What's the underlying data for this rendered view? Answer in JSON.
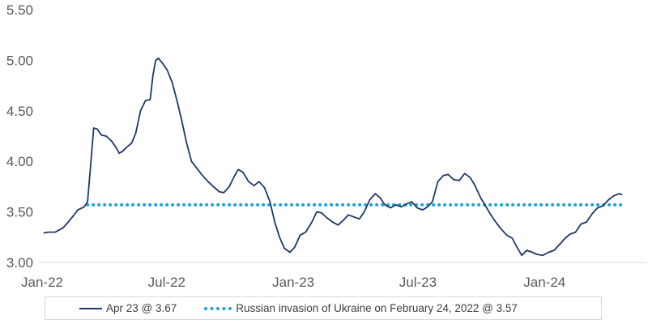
{
  "chart_data": {
    "type": "line",
    "ylim": [
      3.0,
      5.5
    ],
    "y_ticks": [
      "3.00",
      "3.50",
      "4.00",
      "4.50",
      "5.00",
      "5.50"
    ],
    "x_ticks": [
      {
        "label": "Jan-22",
        "date": "2022-01-01"
      },
      {
        "label": "Jul-22",
        "date": "2022-07-01"
      },
      {
        "label": "Jan-23",
        "date": "2023-01-01"
      },
      {
        "label": "Jul-23",
        "date": "2023-07-01"
      },
      {
        "label": "Jan-24",
        "date": "2024-01-01"
      }
    ],
    "grid": false,
    "legend_position": "bottom",
    "series": [
      {
        "name": "Apr 23 @ 3.67",
        "color": "#1f3864",
        "style": "solid",
        "points": [
          [
            "2022-01-03",
            3.29
          ],
          [
            "2022-01-10",
            3.3
          ],
          [
            "2022-01-20",
            3.3
          ],
          [
            "2022-01-31",
            3.34
          ],
          [
            "2022-02-08",
            3.4
          ],
          [
            "2022-02-14",
            3.45
          ],
          [
            "2022-02-22",
            3.52
          ],
          [
            "2022-03-03",
            3.55
          ],
          [
            "2022-03-08",
            3.6
          ],
          [
            "2022-03-13",
            4.0
          ],
          [
            "2022-03-17",
            4.33
          ],
          [
            "2022-03-22",
            4.32
          ],
          [
            "2022-03-28",
            4.26
          ],
          [
            "2022-04-04",
            4.25
          ],
          [
            "2022-04-12",
            4.2
          ],
          [
            "2022-04-19",
            4.13
          ],
          [
            "2022-04-23",
            4.08
          ],
          [
            "2022-04-28",
            4.1
          ],
          [
            "2022-05-04",
            4.14
          ],
          [
            "2022-05-11",
            4.18
          ],
          [
            "2022-05-17",
            4.28
          ],
          [
            "2022-05-24",
            4.5
          ],
          [
            "2022-05-31",
            4.6
          ],
          [
            "2022-06-07",
            4.61
          ],
          [
            "2022-06-11",
            4.85
          ],
          [
            "2022-06-15",
            5.0
          ],
          [
            "2022-06-19",
            5.02
          ],
          [
            "2022-06-25",
            4.97
          ],
          [
            "2022-07-02",
            4.9
          ],
          [
            "2022-07-09",
            4.78
          ],
          [
            "2022-07-16",
            4.6
          ],
          [
            "2022-07-23",
            4.4
          ],
          [
            "2022-07-30",
            4.18
          ],
          [
            "2022-08-06",
            4.0
          ],
          [
            "2022-08-14",
            3.93
          ],
          [
            "2022-08-22",
            3.86
          ],
          [
            "2022-08-30",
            3.8
          ],
          [
            "2022-09-07",
            3.75
          ],
          [
            "2022-09-15",
            3.7
          ],
          [
            "2022-09-22",
            3.69
          ],
          [
            "2022-09-30",
            3.75
          ],
          [
            "2022-10-07",
            3.85
          ],
          [
            "2022-10-13",
            3.92
          ],
          [
            "2022-10-20",
            3.89
          ],
          [
            "2022-10-28",
            3.8
          ],
          [
            "2022-11-05",
            3.76
          ],
          [
            "2022-11-12",
            3.8
          ],
          [
            "2022-11-20",
            3.74
          ],
          [
            "2022-11-28",
            3.6
          ],
          [
            "2022-12-05",
            3.4
          ],
          [
            "2022-12-12",
            3.25
          ],
          [
            "2022-12-19",
            3.14
          ],
          [
            "2022-12-27",
            3.1
          ],
          [
            "2023-01-03",
            3.15
          ],
          [
            "2023-01-11",
            3.27
          ],
          [
            "2023-01-19",
            3.3
          ],
          [
            "2023-01-28",
            3.4
          ],
          [
            "2023-02-04",
            3.5
          ],
          [
            "2023-02-11",
            3.49
          ],
          [
            "2023-02-19",
            3.44
          ],
          [
            "2023-02-27",
            3.4
          ],
          [
            "2023-03-07",
            3.37
          ],
          [
            "2023-03-15",
            3.42
          ],
          [
            "2023-03-22",
            3.47
          ],
          [
            "2023-03-30",
            3.45
          ],
          [
            "2023-04-07",
            3.43
          ],
          [
            "2023-04-14",
            3.5
          ],
          [
            "2023-04-22",
            3.62
          ],
          [
            "2023-04-30",
            3.68
          ],
          [
            "2023-05-07",
            3.64
          ],
          [
            "2023-05-14",
            3.57
          ],
          [
            "2023-05-22",
            3.54
          ],
          [
            "2023-05-30",
            3.57
          ],
          [
            "2023-06-07",
            3.55
          ],
          [
            "2023-06-15",
            3.58
          ],
          [
            "2023-06-22",
            3.6
          ],
          [
            "2023-06-30",
            3.54
          ],
          [
            "2023-07-08",
            3.52
          ],
          [
            "2023-07-15",
            3.55
          ],
          [
            "2023-07-22",
            3.6
          ],
          [
            "2023-07-30",
            3.8
          ],
          [
            "2023-08-07",
            3.86
          ],
          [
            "2023-08-14",
            3.87
          ],
          [
            "2023-08-22",
            3.82
          ],
          [
            "2023-08-30",
            3.81
          ],
          [
            "2023-09-07",
            3.88
          ],
          [
            "2023-09-15",
            3.84
          ],
          [
            "2023-09-22",
            3.76
          ],
          [
            "2023-09-30",
            3.64
          ],
          [
            "2023-10-08",
            3.55
          ],
          [
            "2023-10-15",
            3.47
          ],
          [
            "2023-10-22",
            3.4
          ],
          [
            "2023-10-30",
            3.33
          ],
          [
            "2023-11-07",
            3.27
          ],
          [
            "2023-11-15",
            3.24
          ],
          [
            "2023-11-22",
            3.15
          ],
          [
            "2023-11-29",
            3.07
          ],
          [
            "2023-12-06",
            3.12
          ],
          [
            "2023-12-14",
            3.1
          ],
          [
            "2023-12-21",
            3.08
          ],
          [
            "2023-12-29",
            3.07
          ],
          [
            "2024-01-07",
            3.1
          ],
          [
            "2024-01-15",
            3.12
          ],
          [
            "2024-01-23",
            3.18
          ],
          [
            "2024-01-31",
            3.24
          ],
          [
            "2024-02-07",
            3.28
          ],
          [
            "2024-02-15",
            3.3
          ],
          [
            "2024-02-23",
            3.38
          ],
          [
            "2024-03-02",
            3.4
          ],
          [
            "2024-03-10",
            3.48
          ],
          [
            "2024-03-18",
            3.54
          ],
          [
            "2024-03-26",
            3.56
          ],
          [
            "2024-04-03",
            3.62
          ],
          [
            "2024-04-11",
            3.66
          ],
          [
            "2024-04-18",
            3.68
          ],
          [
            "2024-04-23",
            3.67
          ]
        ]
      },
      {
        "name": "Russian invasion of Ukraine on February 24, 2022 @ 3.57",
        "color": "#1ba1d8",
        "style": "dotted",
        "points": [
          [
            "2022-03-08",
            3.57
          ],
          [
            "2024-04-23",
            3.57
          ]
        ]
      }
    ]
  }
}
